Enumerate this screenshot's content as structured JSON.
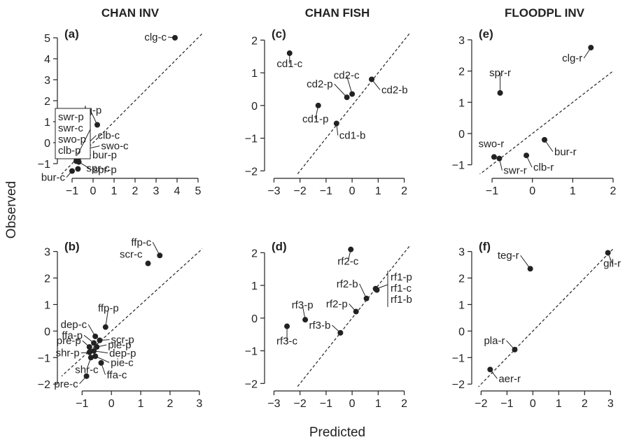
{
  "figure": {
    "column_titles": [
      "CHAN INV",
      "CHAN FISH",
      "FLOODPL INV"
    ],
    "xlabel": "Predicted",
    "ylabel": "Observed"
  },
  "chart_data": [
    {
      "id": "a",
      "letter": "(a)",
      "type": "scatter",
      "xlim": [
        -1.5,
        5.2
      ],
      "ylim": [
        -1.5,
        5.2
      ],
      "xticks": [
        -1,
        0,
        1,
        2,
        3,
        4,
        5
      ],
      "yticks": [
        -1,
        0,
        1,
        2,
        3,
        4,
        5
      ],
      "reference_line": "1:1 dashed",
      "points": [
        {
          "label": "clg-c",
          "x": 3.9,
          "y": 5.0
        },
        {
          "label": "clg-p",
          "x": 0.2,
          "y": 0.85
        },
        {
          "label": "clb-c",
          "x": -0.45,
          "y": -0.22
        },
        {
          "label": "swo-c",
          "x": -0.42,
          "y": -0.32
        },
        {
          "label": "swr-p",
          "x": -0.75,
          "y": -0.6
        },
        {
          "label": "swr-c",
          "x": -0.75,
          "y": -0.7
        },
        {
          "label": "swo-p",
          "x": -0.78,
          "y": -0.8
        },
        {
          "label": "clb-p",
          "x": -0.8,
          "y": -0.88
        },
        {
          "label": "bur-p",
          "x": -0.7,
          "y": -0.75
        },
        {
          "label": "spr-p",
          "x": -0.68,
          "y": -0.92
        },
        {
          "label": "spr-c",
          "x": -0.72,
          "y": -1.25
        },
        {
          "label": "bur-c",
          "x": -1.0,
          "y": -1.35
        }
      ],
      "box_labels": [
        "swr-p",
        "swr-c",
        "swo-p",
        "clb-p"
      ]
    },
    {
      "id": "c",
      "letter": "(c)",
      "type": "scatter",
      "xlim": [
        -3.2,
        2.2
      ],
      "ylim": [
        -2.1,
        2.2
      ],
      "xticks": [
        -3,
        -2,
        -1,
        0,
        1,
        2
      ],
      "yticks": [
        -2,
        -1,
        0,
        1,
        2
      ],
      "reference_line": "1:1 dashed",
      "points": [
        {
          "label": "cd1-c",
          "x": -2.4,
          "y": 1.6
        },
        {
          "label": "cd1-p",
          "x": -1.3,
          "y": 0.0
        },
        {
          "label": "cd2-p",
          "x": -0.2,
          "y": 0.25
        },
        {
          "label": "cd2-c",
          "x": 0.0,
          "y": 0.35
        },
        {
          "label": "cd2-b",
          "x": 0.75,
          "y": 0.8
        },
        {
          "label": "cd1-b",
          "x": -0.6,
          "y": -0.55
        }
      ]
    },
    {
      "id": "e",
      "letter": "(e)",
      "type": "scatter",
      "xlim": [
        -1.4,
        2.0
      ],
      "ylim": [
        -1.3,
        3.2
      ],
      "xticks": [
        -1,
        0,
        1,
        2
      ],
      "yticks": [
        -1,
        0,
        1,
        2,
        3
      ],
      "reference_line": "1:1 dashed",
      "points": [
        {
          "label": "clg-r",
          "x": 1.45,
          "y": 2.75
        },
        {
          "label": "spr-r",
          "x": -0.8,
          "y": 1.3
        },
        {
          "label": "bur-r",
          "x": 0.3,
          "y": -0.2
        },
        {
          "label": "swo-r",
          "x": -0.95,
          "y": -0.75
        },
        {
          "label": "swr-r",
          "x": -0.82,
          "y": -0.8
        },
        {
          "label": "clb-r",
          "x": -0.15,
          "y": -0.7
        }
      ]
    },
    {
      "id": "b",
      "letter": "(b)",
      "type": "scatter",
      "xlim": [
        -1.7,
        3.1
      ],
      "ylim": [
        -2.1,
        3.2
      ],
      "xticks": [
        -1,
        0,
        1,
        2,
        3
      ],
      "yticks": [
        -2,
        -1,
        0,
        1,
        2,
        3
      ],
      "reference_line": "1:1 dashed",
      "points": [
        {
          "label": "ffp-c",
          "x": 1.65,
          "y": 2.85
        },
        {
          "label": "scr-c",
          "x": 1.25,
          "y": 2.55
        },
        {
          "label": "ffp-p",
          "x": -0.2,
          "y": 0.15
        },
        {
          "label": "dep-c",
          "x": -0.55,
          "y": -0.2
        },
        {
          "label": "scr-p",
          "x": -0.4,
          "y": -0.35
        },
        {
          "label": "ffa-p",
          "x": -0.6,
          "y": -0.45
        },
        {
          "label": "pre-p",
          "x": -0.75,
          "y": -0.6
        },
        {
          "label": "pie-p",
          "x": -0.5,
          "y": -0.6
        },
        {
          "label": "dep-p",
          "x": -0.6,
          "y": -0.75
        },
        {
          "label": "shr-p",
          "x": -0.75,
          "y": -0.8
        },
        {
          "label": "pie-c",
          "x": -0.55,
          "y": -0.95
        },
        {
          "label": "shr-c",
          "x": -0.7,
          "y": -1.0
        },
        {
          "label": "ffa-c",
          "x": -0.35,
          "y": -1.2
        },
        {
          "label": "pre-c",
          "x": -0.85,
          "y": -1.7
        }
      ]
    },
    {
      "id": "d",
      "letter": "(d)",
      "type": "scatter",
      "xlim": [
        -3.2,
        2.2
      ],
      "ylim": [
        -2.1,
        2.2
      ],
      "xticks": [
        -3,
        -2,
        -1,
        0,
        1,
        2
      ],
      "yticks": [
        -2,
        -1,
        0,
        1,
        2
      ],
      "reference_line": "1:1 dashed",
      "points": [
        {
          "label": "rf2-c",
          "x": -0.05,
          "y": 2.1
        },
        {
          "label": "rf3-p",
          "x": -1.8,
          "y": -0.05
        },
        {
          "label": "rf3-c",
          "x": -2.5,
          "y": -0.25
        },
        {
          "label": "rf3-b",
          "x": -0.45,
          "y": -0.45
        },
        {
          "label": "rf2-p",
          "x": 0.15,
          "y": 0.2
        },
        {
          "label": "rf2-b",
          "x": 0.55,
          "y": 0.6
        },
        {
          "label": "rf1-p",
          "x": 0.9,
          "y": 0.9
        },
        {
          "label": "rf1-c",
          "x": 0.92,
          "y": 0.88
        },
        {
          "label": "rf1-b",
          "x": 0.95,
          "y": 0.86
        }
      ],
      "box_labels": [
        "rf1-p",
        "rf1-c",
        "rf1-b"
      ]
    },
    {
      "id": "f",
      "letter": "(f)",
      "type": "scatter",
      "xlim": [
        -2.2,
        3.1
      ],
      "ylim": [
        -2.1,
        3.2
      ],
      "xticks": [
        -2,
        -1,
        0,
        1,
        2,
        3
      ],
      "yticks": [
        -2,
        -1,
        0,
        1,
        2,
        3
      ],
      "reference_line": "1:1 dashed",
      "points": [
        {
          "label": "gil-r",
          "x": 2.9,
          "y": 2.95
        },
        {
          "label": "teg-r",
          "x": -0.1,
          "y": 2.35
        },
        {
          "label": "pla-r",
          "x": -0.7,
          "y": -0.7
        },
        {
          "label": "aer-r",
          "x": -1.65,
          "y": -1.45
        }
      ]
    }
  ]
}
